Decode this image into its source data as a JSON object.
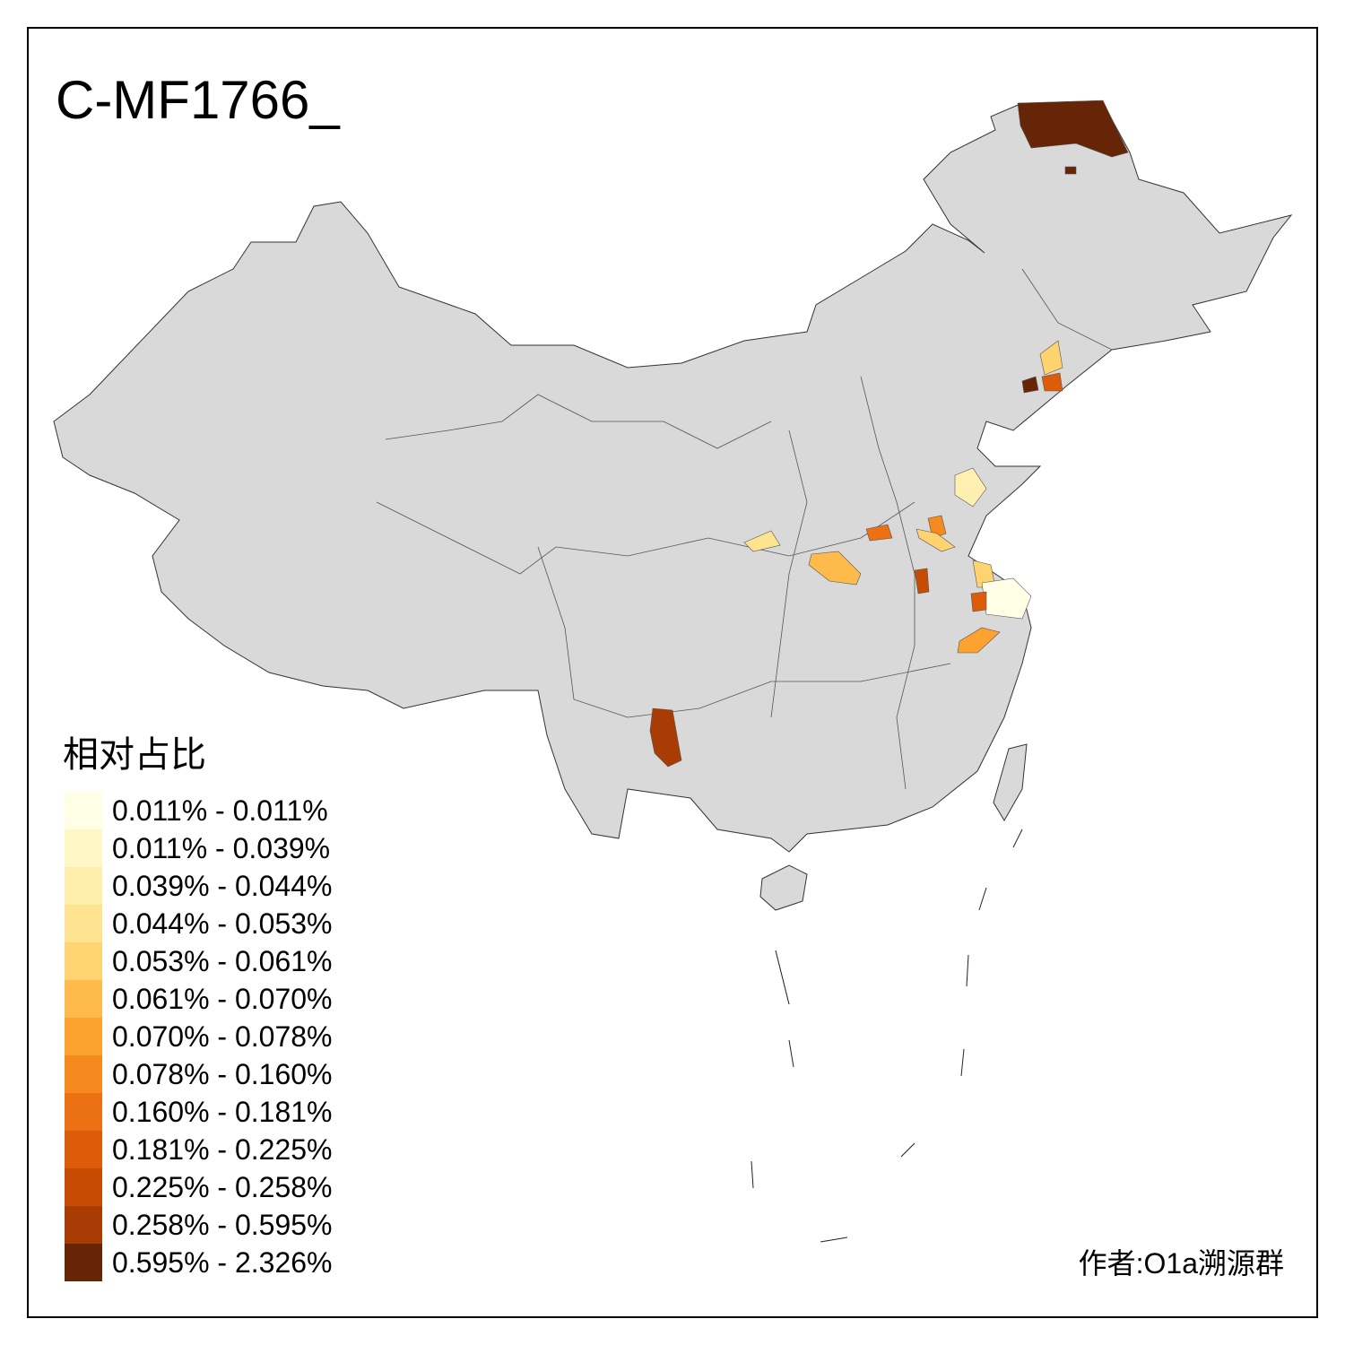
{
  "title": "C-MF1766_",
  "legend": {
    "title": "相对占比",
    "items": [
      {
        "label": "0.011% - 0.011%",
        "color": "#ffffe5"
      },
      {
        "label": "0.011% - 0.039%",
        "color": "#fff8c6"
      },
      {
        "label": "0.039% - 0.044%",
        "color": "#feefac"
      },
      {
        "label": "0.044% - 0.053%",
        "color": "#fee391"
      },
      {
        "label": "0.053% - 0.061%",
        "color": "#fed370"
      },
      {
        "label": "0.061% - 0.070%",
        "color": "#feba4a"
      },
      {
        "label": "0.070% - 0.078%",
        "color": "#fca22f"
      },
      {
        "label": "0.078% - 0.160%",
        "color": "#f78a1f"
      },
      {
        "label": "0.160% - 0.181%",
        "color": "#ec7014"
      },
      {
        "label": "0.181% - 0.225%",
        "color": "#dc5c0a"
      },
      {
        "label": "0.225% - 0.258%",
        "color": "#c84b03"
      },
      {
        "label": "0.258% - 0.595%",
        "color": "#a93c04"
      },
      {
        "label": "0.595% - 2.326%",
        "color": "#662506"
      }
    ]
  },
  "credit": "作者:O1a溯源群"
}
